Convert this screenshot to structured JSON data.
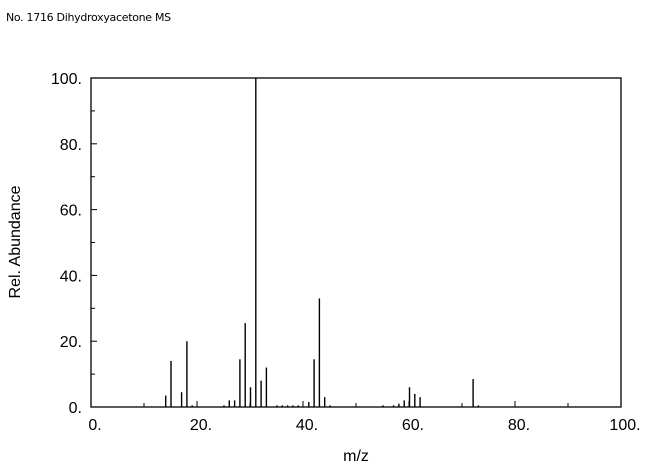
{
  "caption": "No. 1716 Dihydroxyacetone MS",
  "chart_data": {
    "type": "bar",
    "title": "No. 1716 Dihydroxyacetone MS",
    "xlabel": "m/z",
    "ylabel": "Rel. Abundance",
    "xlim": [
      0,
      100
    ],
    "ylim": [
      0,
      100
    ],
    "xticks": [
      0,
      20,
      40,
      60,
      80,
      100
    ],
    "yticks": [
      0,
      20,
      40,
      60,
      80,
      100
    ],
    "xtick_labels": [
      "0.",
      "20.",
      "40.",
      "60.",
      "80.",
      "100."
    ],
    "ytick_labels": [
      "0.",
      "20.",
      "40.",
      "60.",
      "80.",
      "100."
    ],
    "grid": false,
    "peaks": [
      {
        "mz": 14,
        "abundance": 3.5
      },
      {
        "mz": 15,
        "abundance": 14
      },
      {
        "mz": 17,
        "abundance": 4.5
      },
      {
        "mz": 18,
        "abundance": 20
      },
      {
        "mz": 19,
        "abundance": 0.5
      },
      {
        "mz": 25,
        "abundance": 0.5
      },
      {
        "mz": 26,
        "abundance": 2
      },
      {
        "mz": 27,
        "abundance": 2
      },
      {
        "mz": 28,
        "abundance": 14.5
      },
      {
        "mz": 29,
        "abundance": 25.5
      },
      {
        "mz": 30,
        "abundance": 6
      },
      {
        "mz": 31,
        "abundance": 100
      },
      {
        "mz": 32,
        "abundance": 8
      },
      {
        "mz": 33,
        "abundance": 12
      },
      {
        "mz": 35,
        "abundance": 0.5
      },
      {
        "mz": 36,
        "abundance": 0.5
      },
      {
        "mz": 37,
        "abundance": 0.5
      },
      {
        "mz": 38,
        "abundance": 0.5
      },
      {
        "mz": 39,
        "abundance": 0.5
      },
      {
        "mz": 41,
        "abundance": 1.5
      },
      {
        "mz": 42,
        "abundance": 14.5
      },
      {
        "mz": 43,
        "abundance": 33
      },
      {
        "mz": 44,
        "abundance": 3
      },
      {
        "mz": 45,
        "abundance": 0.5
      },
      {
        "mz": 55,
        "abundance": 0.5
      },
      {
        "mz": 57,
        "abundance": 0.5
      },
      {
        "mz": 58,
        "abundance": 1
      },
      {
        "mz": 59,
        "abundance": 2
      },
      {
        "mz": 60,
        "abundance": 6
      },
      {
        "mz": 61,
        "abundance": 4
      },
      {
        "mz": 62,
        "abundance": 3
      },
      {
        "mz": 72,
        "abundance": 8.5
      },
      {
        "mz": 73,
        "abundance": 0.5
      }
    ]
  }
}
